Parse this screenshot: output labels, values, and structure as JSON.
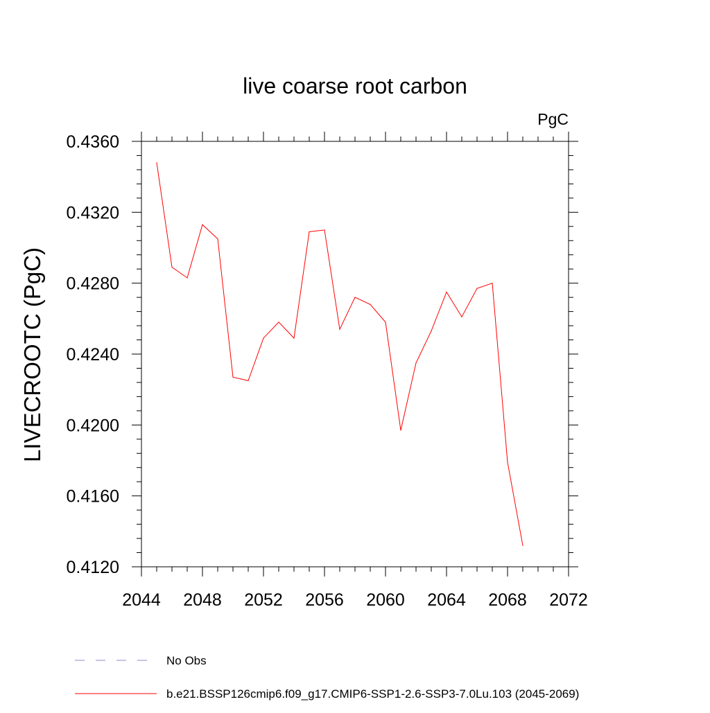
{
  "chart_data": {
    "type": "line",
    "title": "live coarse root carbon",
    "units_label": "PgC",
    "ylabel": "LIVECROOTC  (PgC)",
    "xlabel": "",
    "xlim": [
      2044,
      2072
    ],
    "ylim": [
      0.412,
      0.436
    ],
    "x_ticks": [
      "2044",
      "2048",
      "2052",
      "2056",
      "2060",
      "2064",
      "2068",
      "2072"
    ],
    "x_tick_values": [
      2044,
      2048,
      2052,
      2056,
      2060,
      2064,
      2068,
      2072
    ],
    "y_ticks": [
      "0.4120",
      "0.4160",
      "0.4200",
      "0.4240",
      "0.4280",
      "0.4320",
      "0.4360"
    ],
    "y_tick_values": [
      0.412,
      0.416,
      0.42,
      0.424,
      0.428,
      0.432,
      0.436
    ],
    "grid": false,
    "legend_position": "bottom",
    "series": [
      {
        "name": "b.e21.BSSP126cmip6.f09_g17.CMIP6-SSP1-2.6-SSP3-7.0Lu.103 (2045-2069)",
        "color": "#ff0000",
        "dash": "solid",
        "x": [
          2045,
          2046,
          2047,
          2048,
          2049,
          2050,
          2051,
          2052,
          2053,
          2054,
          2055,
          2056,
          2057,
          2058,
          2059,
          2060,
          2061,
          2062,
          2063,
          2064,
          2065,
          2066,
          2067,
          2068,
          2069
        ],
        "y": [
          0.4348,
          0.4289,
          0.4283,
          0.4313,
          0.4305,
          0.4227,
          0.4225,
          0.4249,
          0.4258,
          0.4249,
          0.4309,
          0.431,
          0.4254,
          0.4272,
          0.4268,
          0.4258,
          0.4197,
          0.4235,
          0.4253,
          0.4275,
          0.4261,
          0.4277,
          0.428,
          0.4179,
          0.4132
        ]
      }
    ],
    "legend": [
      {
        "label": "No Obs",
        "color": "#8888cc",
        "dash": "dashed"
      },
      {
        "label": "b.e21.BSSP126cmip6.f09_g17.CMIP6-SSP1-2.6-SSP3-7.0Lu.103 (2045-2069)",
        "color": "#ff0000",
        "dash": "solid"
      }
    ]
  }
}
